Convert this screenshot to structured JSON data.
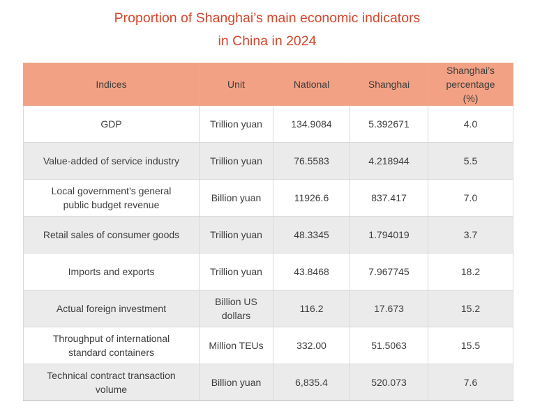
{
  "title": {
    "line1": "Proportion of Shanghai’s main economic indicators",
    "line2": "in China in 2024"
  },
  "colors": {
    "title": "#d3462c",
    "header_background": "#f2a184",
    "stripe_background": "#ebebeb"
  },
  "table": {
    "headers": [
      "Indices",
      "Unit",
      "National",
      "Shanghai",
      "Shanghai’s percentage (%)"
    ],
    "rows": [
      [
        "GDP",
        "Trillion yuan",
        "134.9084",
        "5.392671",
        "4.0"
      ],
      [
        "Value-added of service industry",
        "Trillion yuan",
        "76.5583",
        "4.218944",
        "5.5"
      ],
      [
        "Local government’s general public budget revenue",
        "Billion yuan",
        "11926.6",
        "837.417",
        "7.0"
      ],
      [
        "Retail sales of consumer goods",
        "Trillion yuan",
        "48.3345",
        "1.794019",
        "3.7"
      ],
      [
        "Imports and exports",
        "Trillion yuan",
        "43.8468",
        "7.967745",
        "18.2"
      ],
      [
        "Actual foreign investment",
        "Billion US dollars",
        "116.2",
        "17.673",
        "15.2"
      ],
      [
        "Throughput of international standard containers",
        "Million TEUs",
        "332.00",
        "51.5063",
        "15.5"
      ],
      [
        "Technical contract transaction volume",
        "Billion yuan",
        "6,835.4",
        "520.073",
        "7.6"
      ]
    ]
  }
}
